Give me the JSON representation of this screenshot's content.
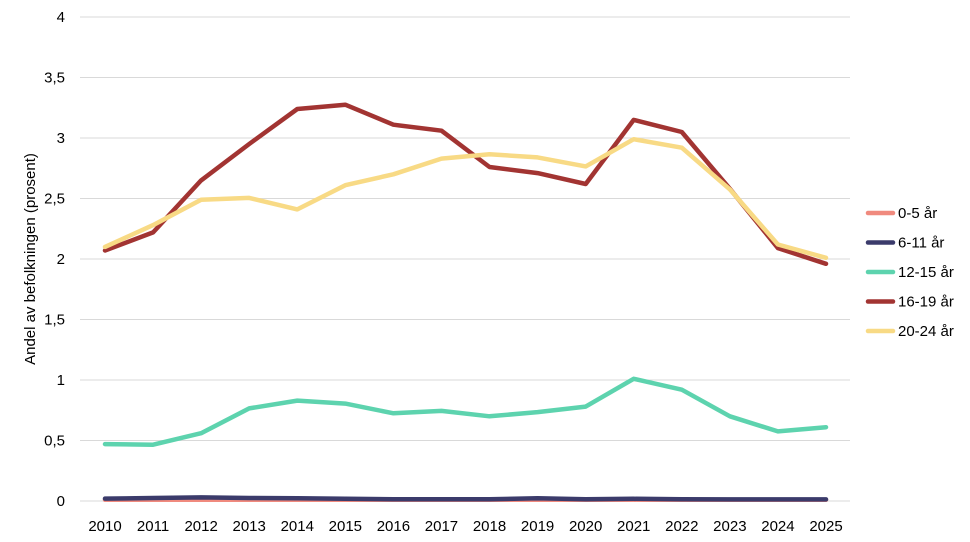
{
  "chart_data": {
    "type": "line",
    "title": "",
    "xlabel": "",
    "ylabel": "Andel av befolkningen (prosent)",
    "x": [
      "2010",
      "2011",
      "2012",
      "2013",
      "2014",
      "2015",
      "2016",
      "2017",
      "2018",
      "2019",
      "2020",
      "2021",
      "2022",
      "2023",
      "2024",
      "2025"
    ],
    "ylim": [
      0,
      4
    ],
    "yticks": [
      {
        "value": 0,
        "label": "0"
      },
      {
        "value": 0.5,
        "label": "0,5"
      },
      {
        "value": 1,
        "label": "1"
      },
      {
        "value": 1.5,
        "label": "1,5"
      },
      {
        "value": 2,
        "label": "2"
      },
      {
        "value": 2.5,
        "label": "2,5"
      },
      {
        "value": 3,
        "label": "3"
      },
      {
        "value": 3.5,
        "label": "3,5"
      },
      {
        "value": 4,
        "label": "4"
      }
    ],
    "grid": true,
    "legend_position": "right",
    "series": [
      {
        "name": "0-5 år",
        "color": "#F08A7E",
        "values": [
          0.01,
          0.01,
          0.01,
          0.01,
          0.01,
          0.01,
          0.01,
          0.01,
          0.01,
          0.01,
          0.01,
          0.01,
          0.01,
          0.01,
          0.01,
          0.01
        ]
      },
      {
        "name": "6-11 år",
        "color": "#3B3B6B",
        "values": [
          0.02,
          0.025,
          0.03,
          0.025,
          0.022,
          0.018,
          0.015,
          0.015,
          0.015,
          0.022,
          0.015,
          0.018,
          0.015,
          0.013,
          0.013,
          0.013
        ]
      },
      {
        "name": "12-15 år",
        "color": "#5DD3AE",
        "values": [
          0.47,
          0.465,
          0.56,
          0.765,
          0.83,
          0.805,
          0.725,
          0.745,
          0.7,
          0.735,
          0.78,
          1.01,
          0.92,
          0.7,
          0.575,
          0.61
        ]
      },
      {
        "name": "16-19 år",
        "color": "#A23432",
        "values": [
          2.07,
          2.22,
          2.65,
          2.95,
          3.24,
          3.275,
          3.11,
          3.06,
          2.76,
          2.71,
          2.62,
          3.15,
          3.05,
          2.58,
          2.09,
          1.96
        ]
      },
      {
        "name": "20-24 år",
        "color": "#F8DA85",
        "values": [
          2.1,
          2.28,
          2.49,
          2.505,
          2.41,
          2.61,
          2.7,
          2.83,
          2.865,
          2.84,
          2.765,
          2.99,
          2.92,
          2.575,
          2.12,
          2.01
        ]
      }
    ]
  }
}
